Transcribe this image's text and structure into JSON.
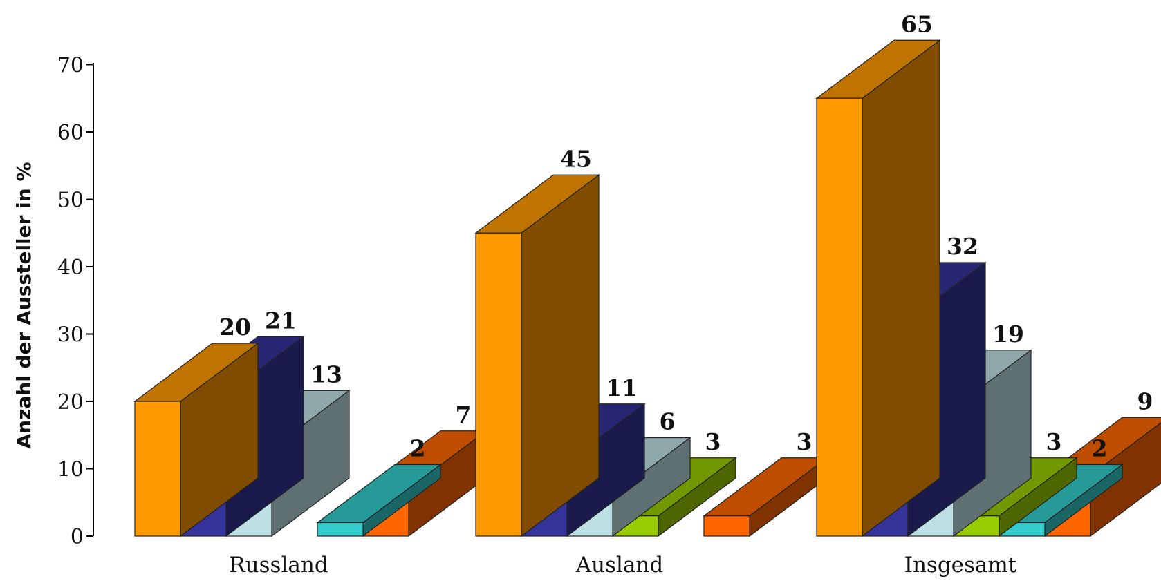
{
  "chart_data": {
    "type": "bar",
    "title": "",
    "xlabel": "",
    "ylabel": "Anzahl der Aussteller in  %",
    "ylim": [
      0,
      70
    ],
    "yticks": [
      "0",
      "10",
      "20",
      "30",
      "40",
      "50",
      "60",
      "70"
    ],
    "grid": false,
    "legend": "none",
    "three_d": true,
    "categories": [
      "Russland",
      "Ausland",
      "Insgesamt"
    ],
    "series": [
      {
        "color": "#FF9900",
        "values": [
          20,
          45,
          65
        ]
      },
      {
        "color": "#333399",
        "values": [
          21,
          11,
          32
        ]
      },
      {
        "color": "#BDE0E4",
        "values": [
          13,
          6,
          19
        ]
      },
      {
        "color": "#99CC00",
        "values": [
          null,
          3,
          3
        ]
      },
      {
        "color": "#33CCCC",
        "values": [
          2,
          null,
          2
        ]
      },
      {
        "color": "#FF6600",
        "values": [
          7,
          3,
          9
        ]
      }
    ],
    "data_labels": [
      [
        "20",
        "21",
        "13",
        null,
        "2",
        "7"
      ],
      [
        "45",
        "11",
        "6",
        "3",
        null,
        "3"
      ],
      [
        "65",
        "32",
        "19",
        "3",
        "2",
        "9"
      ]
    ]
  }
}
